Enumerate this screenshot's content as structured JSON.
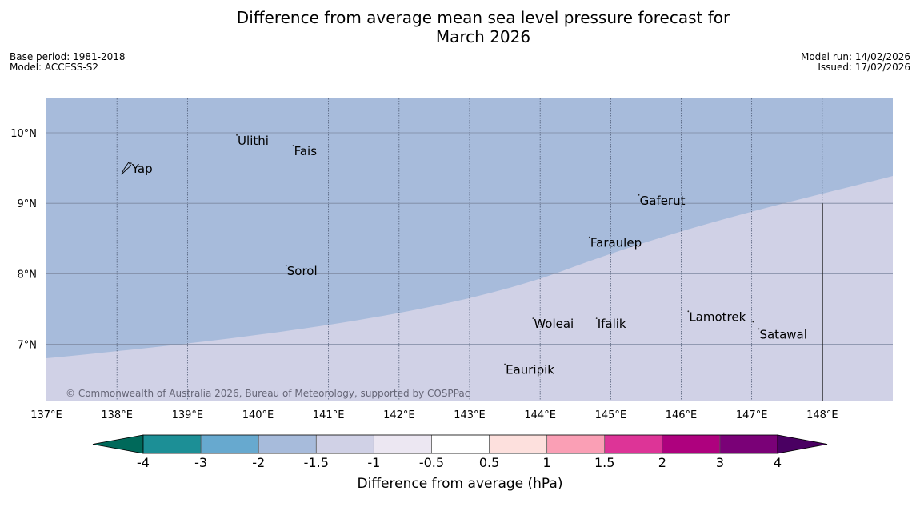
{
  "title": {
    "line1": "Difference from average mean sea level pressure forecast for",
    "line2": "March 2026"
  },
  "meta_left": {
    "base_period": "Base period: 1981-2018",
    "model": "Model: ACCESS-S2"
  },
  "meta_right": {
    "model_run": "Model run: 14/02/2026",
    "issued": "Issued: 17/02/2026"
  },
  "map": {
    "lon_range": [
      137,
      149
    ],
    "lat_range": [
      6.2,
      10.5
    ],
    "fill_colors": {
      "upper": "#a7bbdb",
      "lower": "#d0d1e6"
    },
    "lat_ticks": [
      {
        "value": 10,
        "label": "10°N"
      },
      {
        "value": 9,
        "label": "9°N"
      },
      {
        "value": 8,
        "label": "8°N"
      },
      {
        "value": 7,
        "label": "7°N"
      }
    ],
    "lon_ticks": [
      {
        "value": 137,
        "label": "137°E"
      },
      {
        "value": 138,
        "label": "138°E"
      },
      {
        "value": 139,
        "label": "139°E"
      },
      {
        "value": 140,
        "label": "140°E"
      },
      {
        "value": 141,
        "label": "141°E"
      },
      {
        "value": 142,
        "label": "142°E"
      },
      {
        "value": 143,
        "label": "143°E"
      },
      {
        "value": 144,
        "label": "144°E"
      },
      {
        "value": 145,
        "label": "145°E"
      },
      {
        "value": 146,
        "label": "146°E"
      },
      {
        "value": 147,
        "label": "147°E"
      },
      {
        "value": 148,
        "label": "148°E"
      }
    ],
    "places": [
      {
        "name": "Yap",
        "lon": 138.2,
        "lat": 9.5
      },
      {
        "name": "Ulithi",
        "lon": 139.7,
        "lat": 9.9
      },
      {
        "name": "Fais",
        "lon": 140.5,
        "lat": 9.75
      },
      {
        "name": "Gaferut",
        "lon": 145.4,
        "lat": 9.05
      },
      {
        "name": "Faraulep",
        "lon": 144.7,
        "lat": 8.45
      },
      {
        "name": "Sorol",
        "lon": 140.4,
        "lat": 8.05
      },
      {
        "name": "Lamotrek",
        "lon": 146.1,
        "lat": 7.4
      },
      {
        "name": "Woleai",
        "lon": 143.9,
        "lat": 7.3
      },
      {
        "name": "Ifalik",
        "lon": 144.8,
        "lat": 7.3
      },
      {
        "name": "Satawal",
        "lon": 147.1,
        "lat": 7.15
      },
      {
        "name": "Eauripik",
        "lon": 143.5,
        "lat": 6.65
      }
    ],
    "copyright": "© Commonwealth of Australia 2026, Bureau of Meteorology, supported by COSPPac"
  },
  "colorbar": {
    "label": "Difference from average (hPa)",
    "ticks": [
      "-4",
      "-3",
      "-2",
      "-1.5",
      "-1",
      "-0.5",
      "0.5",
      "1",
      "1.5",
      "2",
      "3",
      "4"
    ],
    "under_color": "#00695a",
    "over_color": "#4a0062",
    "colors": [
      "#1c8f96",
      "#67a9cf",
      "#a7bbdb",
      "#d0d1e6",
      "#ece7f2",
      "#ffffff",
      "#fde0dd",
      "#fa9fb5",
      "#dd3497",
      "#ae017e",
      "#7a0177"
    ]
  }
}
